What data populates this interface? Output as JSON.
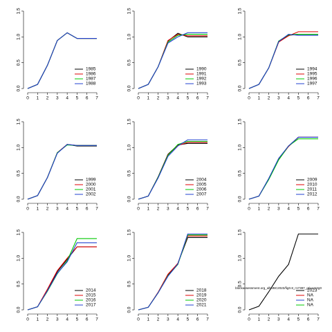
{
  "chart_data": [
    {
      "type": "line",
      "x": [
        0,
        1,
        2,
        3,
        4,
        5,
        6,
        7
      ],
      "xlim": [
        0,
        7
      ],
      "xticks": [
        0,
        1,
        2,
        3,
        4,
        5,
        6,
        7
      ],
      "ylim": [
        0,
        1.5
      ],
      "yticks": [
        {
          "value": 0,
          "label": "0.0"
        },
        {
          "value": 0.5,
          "label": "0.5"
        },
        {
          "value": 1,
          "label": "1.0"
        },
        {
          "value": 1.5,
          "label": "1.5"
        }
      ],
      "series": [
        {
          "name": "1985",
          "color": "#000000",
          "values": [
            0,
            0.08,
            0.45,
            0.93,
            1.08,
            0.97,
            0.97,
            0.97
          ]
        },
        {
          "name": "1986",
          "color": "#df0000",
          "values": [
            0,
            0.08,
            0.45,
            0.93,
            1.08,
            0.97,
            0.97,
            0.97
          ]
        },
        {
          "name": "1987",
          "color": "#00c800",
          "values": [
            0,
            0.08,
            0.45,
            0.93,
            1.08,
            0.97,
            0.97,
            0.97
          ]
        },
        {
          "name": "1988",
          "color": "#2040d0",
          "values": [
            0,
            0.08,
            0.45,
            0.93,
            1.08,
            0.97,
            0.97,
            0.97
          ]
        }
      ]
    },
    {
      "type": "line",
      "x": [
        0,
        1,
        2,
        3,
        4,
        5,
        6,
        7
      ],
      "xlim": [
        0,
        7
      ],
      "xticks": [
        0,
        1,
        2,
        3,
        4,
        5,
        6,
        7
      ],
      "ylim": [
        0,
        1.5
      ],
      "yticks": [
        {
          "value": 0,
          "label": "0.0"
        },
        {
          "value": 0.5,
          "label": "0.5"
        },
        {
          "value": 1,
          "label": "1.0"
        },
        {
          "value": 1.5,
          "label": "1.5"
        }
      ],
      "series": [
        {
          "name": "1990",
          "color": "#000000",
          "values": [
            0,
            0.08,
            0.42,
            0.92,
            1.07,
            1.0,
            1.0,
            1.0
          ]
        },
        {
          "name": "1991",
          "color": "#df0000",
          "values": [
            0,
            0.08,
            0.42,
            0.93,
            1.05,
            1.02,
            1.02,
            1.02
          ]
        },
        {
          "name": "1992",
          "color": "#00c800",
          "values": [
            0,
            0.08,
            0.42,
            0.9,
            1.03,
            1.05,
            1.05,
            1.05
          ]
        },
        {
          "name": "1993",
          "color": "#2040d0",
          "values": [
            0,
            0.08,
            0.42,
            0.88,
            1.0,
            1.08,
            1.08,
            1.08
          ]
        }
      ]
    },
    {
      "type": "line",
      "x": [
        0,
        1,
        2,
        3,
        4,
        5,
        6,
        7
      ],
      "xlim": [
        0,
        7
      ],
      "xticks": [
        0,
        1,
        2,
        3,
        4,
        5,
        6,
        7
      ],
      "ylim": [
        0,
        1.5
      ],
      "yticks": [
        {
          "value": 0,
          "label": "0.0"
        },
        {
          "value": 0.5,
          "label": "0.5"
        },
        {
          "value": 1,
          "label": "1.0"
        },
        {
          "value": 1.5,
          "label": "1.5"
        }
      ],
      "series": [
        {
          "name": "1994",
          "color": "#000000",
          "values": [
            0,
            0.08,
            0.4,
            0.9,
            1.03,
            1.05,
            1.05,
            1.05
          ]
        },
        {
          "name": "1995",
          "color": "#df0000",
          "values": [
            0,
            0.08,
            0.4,
            0.9,
            1.02,
            1.1,
            1.1,
            1.1
          ]
        },
        {
          "name": "1996",
          "color": "#00c800",
          "values": [
            0,
            0.08,
            0.4,
            0.92,
            1.04,
            1.05,
            1.05,
            1.05
          ]
        },
        {
          "name": "1997",
          "color": "#2040d0",
          "values": [
            0,
            0.08,
            0.4,
            0.91,
            1.05,
            1.03,
            1.03,
            1.03
          ]
        }
      ]
    },
    {
      "type": "line",
      "x": [
        0,
        1,
        2,
        3,
        4,
        5,
        6,
        7
      ],
      "xlim": [
        0,
        7
      ],
      "xticks": [
        0,
        1,
        2,
        3,
        4,
        5,
        6,
        7
      ],
      "ylim": [
        0,
        1.5
      ],
      "yticks": [
        {
          "value": 0,
          "label": "0.0"
        },
        {
          "value": 0.5,
          "label": "0.5"
        },
        {
          "value": 1,
          "label": "1.0"
        },
        {
          "value": 1.5,
          "label": "1.5"
        }
      ],
      "series": [
        {
          "name": "1999",
          "color": "#000000",
          "values": [
            0,
            0.07,
            0.42,
            0.9,
            1.06,
            1.03,
            1.03,
            1.03
          ]
        },
        {
          "name": "2000",
          "color": "#df0000",
          "values": [
            0,
            0.07,
            0.42,
            0.9,
            1.06,
            1.04,
            1.04,
            1.04
          ]
        },
        {
          "name": "2001",
          "color": "#00c800",
          "values": [
            0,
            0.07,
            0.42,
            0.9,
            1.05,
            1.04,
            1.04,
            1.04
          ]
        },
        {
          "name": "2002",
          "color": "#2040d0",
          "values": [
            0,
            0.07,
            0.42,
            0.89,
            1.06,
            1.04,
            1.04,
            1.04
          ]
        }
      ]
    },
    {
      "type": "line",
      "x": [
        0,
        1,
        2,
        3,
        4,
        5,
        6,
        7
      ],
      "xlim": [
        0,
        7
      ],
      "xticks": [
        0,
        1,
        2,
        3,
        4,
        5,
        6,
        7
      ],
      "ylim": [
        0,
        1.5
      ],
      "yticks": [
        {
          "value": 0,
          "label": "0.0"
        },
        {
          "value": 0.5,
          "label": "0.5"
        },
        {
          "value": 1,
          "label": "1.0"
        },
        {
          "value": 1.5,
          "label": "1.5"
        }
      ],
      "series": [
        {
          "name": "2004",
          "color": "#000000",
          "values": [
            0,
            0.06,
            0.43,
            0.87,
            1.05,
            1.08,
            1.08,
            1.08
          ]
        },
        {
          "name": "2005",
          "color": "#df0000",
          "values": [
            0,
            0.06,
            0.42,
            0.86,
            1.04,
            1.1,
            1.1,
            1.1
          ]
        },
        {
          "name": "2006",
          "color": "#00c800",
          "values": [
            0,
            0.06,
            0.42,
            0.85,
            1.06,
            1.12,
            1.12,
            1.12
          ]
        },
        {
          "name": "2007",
          "color": "#2040d0",
          "values": [
            0,
            0.06,
            0.41,
            0.83,
            1.03,
            1.15,
            1.15,
            1.15
          ]
        }
      ]
    },
    {
      "type": "line",
      "x": [
        0,
        1,
        2,
        3,
        4,
        5,
        6,
        7
      ],
      "xlim": [
        0,
        7
      ],
      "xticks": [
        0,
        1,
        2,
        3,
        4,
        5,
        6,
        7
      ],
      "ylim": [
        0,
        1.5
      ],
      "yticks": [
        {
          "value": 0,
          "label": "0.0"
        },
        {
          "value": 0.5,
          "label": "0.5"
        },
        {
          "value": 1,
          "label": "1.0"
        },
        {
          "value": 1.5,
          "label": "1.5"
        }
      ],
      "series": [
        {
          "name": "2009",
          "color": "#000000",
          "values": [
            0,
            0.06,
            0.4,
            0.78,
            1.03,
            1.2,
            1.2,
            1.2
          ]
        },
        {
          "name": "2010",
          "color": "#df0000",
          "values": [
            0,
            0.06,
            0.39,
            0.77,
            1.02,
            1.2,
            1.2,
            1.2
          ]
        },
        {
          "name": "2011",
          "color": "#00c800",
          "values": [
            0,
            0.06,
            0.38,
            0.76,
            1.03,
            1.17,
            1.17,
            1.17
          ]
        },
        {
          "name": "2012",
          "color": "#2040d0",
          "values": [
            0,
            0.06,
            0.4,
            0.79,
            1.03,
            1.2,
            1.2,
            1.2
          ]
        }
      ]
    },
    {
      "type": "line",
      "x": [
        0,
        1,
        2,
        3,
        4,
        5,
        6,
        7
      ],
      "xlim": [
        0,
        7
      ],
      "xticks": [
        0,
        1,
        2,
        3,
        4,
        5,
        6,
        7
      ],
      "ylim": [
        0,
        1.5
      ],
      "yticks": [
        {
          "value": 0,
          "label": "0.0"
        },
        {
          "value": 0.5,
          "label": "0.5"
        },
        {
          "value": 1,
          "label": "1.0"
        },
        {
          "value": 1.5,
          "label": "1.5"
        }
      ],
      "series": [
        {
          "name": "2014",
          "color": "#000000",
          "values": [
            0,
            0.06,
            0.38,
            0.74,
            0.98,
            1.22,
            1.22,
            1.22
          ]
        },
        {
          "name": "2015",
          "color": "#df0000",
          "values": [
            0,
            0.06,
            0.4,
            0.76,
            1.0,
            1.22,
            1.22,
            1.22
          ]
        },
        {
          "name": "2016",
          "color": "#00c800",
          "values": [
            0,
            0.06,
            0.36,
            0.7,
            0.95,
            1.38,
            1.38,
            1.38
          ]
        },
        {
          "name": "2017",
          "color": "#2040d0",
          "values": [
            0,
            0.06,
            0.37,
            0.71,
            0.93,
            1.3,
            1.3,
            1.3
          ]
        }
      ]
    },
    {
      "type": "line",
      "x": [
        0,
        1,
        2,
        3,
        4,
        5,
        6,
        7
      ],
      "xlim": [
        0,
        7
      ],
      "xticks": [
        0,
        1,
        2,
        3,
        4,
        5,
        6,
        7
      ],
      "ylim": [
        0,
        1.5
      ],
      "yticks": [
        {
          "value": 0,
          "label": "0.0"
        },
        {
          "value": 0.5,
          "label": "0.5"
        },
        {
          "value": 1,
          "label": "1.0"
        },
        {
          "value": 1.5,
          "label": "1.5"
        }
      ],
      "series": [
        {
          "name": "2018",
          "color": "#000000",
          "values": [
            0,
            0.05,
            0.33,
            0.67,
            0.9,
            1.4,
            1.4,
            1.4
          ]
        },
        {
          "name": "2019",
          "color": "#df0000",
          "values": [
            0,
            0.05,
            0.34,
            0.69,
            0.9,
            1.43,
            1.43,
            1.43
          ]
        },
        {
          "name": "2020",
          "color": "#00c800",
          "values": [
            0,
            0.05,
            0.33,
            0.66,
            0.88,
            1.45,
            1.45,
            1.45
          ]
        },
        {
          "name": "2021",
          "color": "#2040d0",
          "values": [
            0,
            0.05,
            0.33,
            0.65,
            0.89,
            1.47,
            1.47,
            1.47
          ]
        }
      ]
    },
    {
      "type": "line",
      "x": [
        0,
        1,
        2,
        3,
        4,
        5,
        6,
        7
      ],
      "xlim": [
        0,
        7
      ],
      "xticks": [
        0,
        1,
        2,
        3,
        4,
        5,
        6,
        7
      ],
      "ylim": [
        0,
        1.5
      ],
      "yticks": [
        {
          "value": 0,
          "label": "0.0"
        },
        {
          "value": 0.5,
          "label": "0.5"
        },
        {
          "value": 1,
          "label": "1.0"
        },
        {
          "value": 1.5,
          "label": "1.5"
        }
      ],
      "annotation": "blockassessment.org_allWBC2023/fig0.8_r17397_gtiao2r2g0",
      "series": [
        {
          "name": "2023",
          "color": "#000000",
          "values": [
            0,
            0.07,
            0.35,
            0.65,
            0.88,
            1.47,
            1.47,
            1.47
          ]
        },
        {
          "name": "NA",
          "color": "#df0000",
          "values": [
            null,
            null,
            null,
            null,
            null,
            null,
            null,
            null
          ]
        },
        {
          "name": "NA",
          "color": "#2040d0",
          "values": [
            null,
            null,
            null,
            null,
            null,
            null,
            null,
            null
          ]
        },
        {
          "name": "NA",
          "color": "#00c800",
          "values": [
            null,
            null,
            null,
            null,
            null,
            null,
            null,
            null
          ]
        }
      ]
    }
  ]
}
